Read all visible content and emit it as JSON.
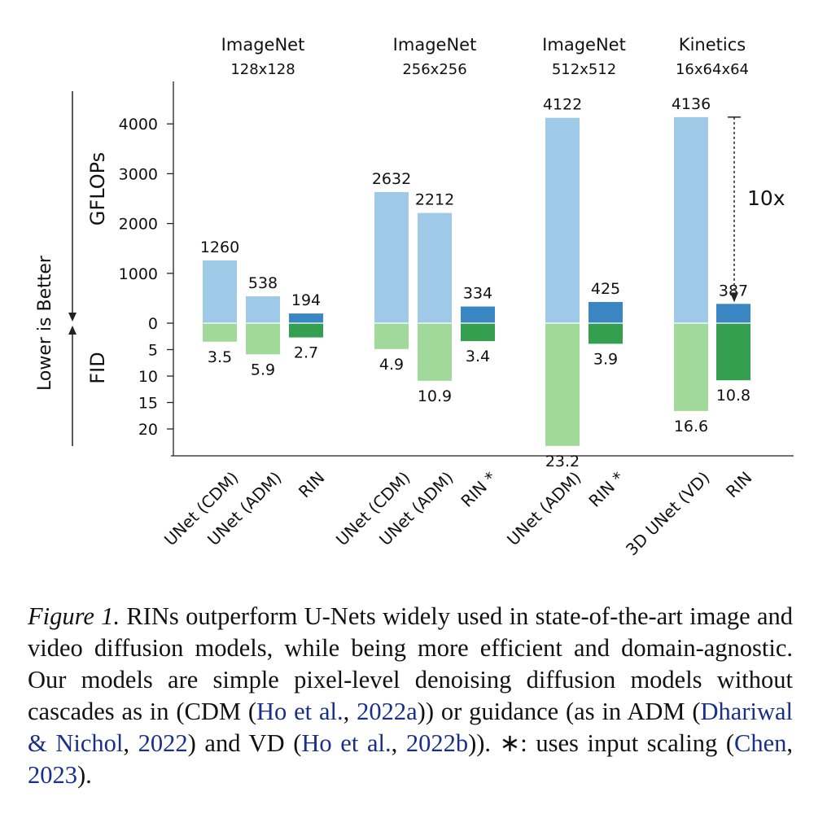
{
  "chart_data": {
    "type": "bar",
    "layout": "mirrored",
    "upper_axis": {
      "label": "GFLOPs",
      "ticks": [
        0,
        1000,
        2000,
        3000,
        4000
      ],
      "range": [
        0,
        4400
      ]
    },
    "lower_axis": {
      "label": "FID",
      "ticks": [
        5,
        10,
        15,
        20
      ],
      "range": [
        0,
        25
      ],
      "direction": "downward"
    },
    "side_label": "Lower is Better",
    "groups": [
      {
        "title": "ImageNet",
        "subtitle": "128x128",
        "models": [
          {
            "name": "UNet (CDM)",
            "gflops": 1260,
            "fid": 3.5,
            "gflops_label": "1260",
            "fid_label": "3.5",
            "method": "baseline"
          },
          {
            "name": "UNet (ADM)",
            "gflops": 538,
            "fid": 5.9,
            "gflops_label": "538",
            "fid_label": "5.9",
            "method": "baseline"
          },
          {
            "name": "RIN",
            "gflops": 194,
            "fid": 2.7,
            "gflops_label": "194",
            "fid_label": "2.7",
            "method": "rin"
          }
        ]
      },
      {
        "title": "ImageNet",
        "subtitle": "256x256",
        "models": [
          {
            "name": "UNet (CDM)",
            "gflops": 2632,
            "fid": 4.9,
            "gflops_label": "2632",
            "fid_label": "4.9",
            "method": "baseline"
          },
          {
            "name": "UNet (ADM)",
            "gflops": 2212,
            "fid": 10.9,
            "gflops_label": "2212",
            "fid_label": "10.9",
            "method": "baseline"
          },
          {
            "name": "RIN *",
            "gflops": 334,
            "fid": 3.4,
            "gflops_label": "334",
            "fid_label": "3.4",
            "method": "rin"
          }
        ]
      },
      {
        "title": "ImageNet",
        "subtitle": "512x512",
        "models": [
          {
            "name": "UNet (ADM)",
            "gflops": 4122,
            "fid": 23.2,
            "gflops_label": "4122",
            "fid_label": "23.2",
            "method": "baseline"
          },
          {
            "name": "RIN *",
            "gflops": 425,
            "fid": 3.9,
            "gflops_label": "425",
            "fid_label": "3.9",
            "method": "rin"
          }
        ]
      },
      {
        "title": "Kinetics",
        "subtitle": "16x64x64",
        "models": [
          {
            "name": "3D UNet (VD)",
            "gflops": 4136,
            "fid": 16.6,
            "gflops_label": "4136",
            "fid_label": "16.6",
            "method": "baseline"
          },
          {
            "name": "RIN",
            "gflops": 387,
            "fid": 10.8,
            "gflops_label": "387",
            "fid_label": "10.8",
            "method": "rin"
          }
        ]
      }
    ],
    "annotation": {
      "text": "10x",
      "from": 4136,
      "to": 387,
      "group": 3
    },
    "colors": {
      "baseline_gflops": "#9ecae8",
      "rin_gflops": "#3a87c4",
      "baseline_fid": "#a1d99b",
      "rin_fid": "#34a04f"
    }
  },
  "caption": {
    "figure_label": "Figure 1.",
    "text_1": " RINs outperform U-Nets widely used in state-of-the-art image and video diffusion models, while being more efficient and domain-agnostic.  Our models are simple pixel-level denoising diffusion models without cascades as in (CDM (",
    "cite_1_authors": "Ho et al.",
    "sep_1": ", ",
    "cite_1_year": "2022a",
    "text_2": ")) or guidance (as in ADM (",
    "cite_2_authors": "Dhariwal & Nichol",
    "sep_2": ", ",
    "cite_2_year": "2022",
    "text_3": ") and VD (",
    "cite_3_authors": "Ho et al.",
    "sep_3": ", ",
    "cite_3_year": "2022b",
    "text_4": ")). ∗: uses input scaling (",
    "cite_4_authors": "Chen",
    "sep_4": ", ",
    "cite_4_year": "2023",
    "text_5": ")."
  }
}
